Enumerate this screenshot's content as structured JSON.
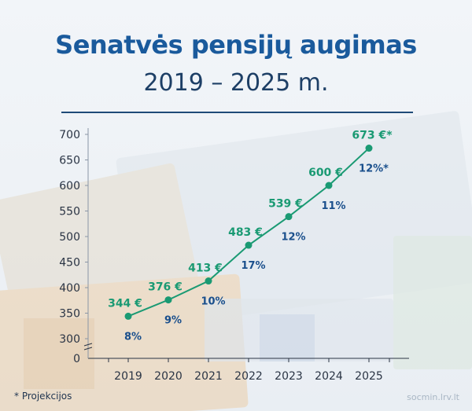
{
  "header": {
    "title": "Senatvės pensijų augimas",
    "subtitle": "2019 – 2025 m."
  },
  "footnote": "* Projekcijos",
  "source": "socmin.lrv.lt",
  "colors": {
    "title": "#1a5a9c",
    "line": "#1a9a73",
    "percent": "#1a4f8c",
    "axis": "#2a3444"
  },
  "chart_data": {
    "type": "line",
    "title": "Senatvės pensijų augimas",
    "subtitle": "2019 – 2025 m.",
    "categories": [
      "2019",
      "2020",
      "2021",
      "2022",
      "2023",
      "2024",
      "2025"
    ],
    "series": [
      {
        "values": [
          344,
          376,
          413,
          483,
          539,
          600,
          673
        ],
        "value_labels": [
          "344 €",
          "376 €",
          "413 €",
          "483 €",
          "539 €",
          "600 €",
          "673 €*"
        ],
        "growth_labels": [
          "8%",
          "9%",
          "10%",
          "17%",
          "12%",
          "11%",
          "12%*"
        ]
      }
    ],
    "yticks": [
      "0",
      "300",
      "350",
      "400",
      "450",
      "500",
      "550",
      "600",
      "650",
      "700"
    ],
    "ylim": [
      300,
      700
    ],
    "axis_break": true,
    "grid": false,
    "xlabel": "",
    "ylabel": ""
  }
}
